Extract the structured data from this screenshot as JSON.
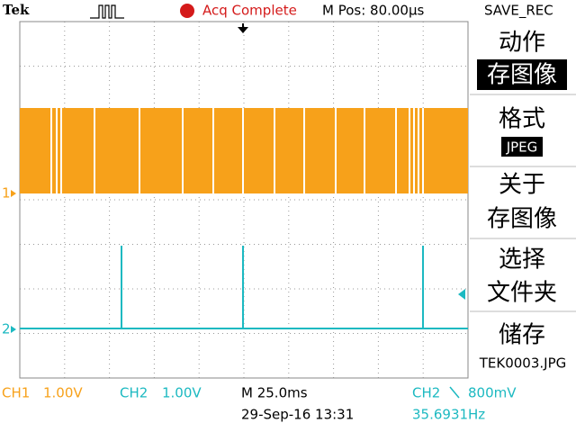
{
  "header": {
    "brand": "Tek",
    "status": "Acq Complete",
    "position": "M Pos: 80.00µs",
    "menu_title": "SAVE_REC"
  },
  "menu": {
    "action_label": "动作",
    "action_value": "存图像",
    "format_label": "格式",
    "format_value": "JPEG",
    "about": [
      "关于",
      "存图像"
    ],
    "select": [
      "选择",
      "文件夹"
    ],
    "save_label": "储存",
    "save_file": "TEK0003.JPG"
  },
  "channels": {
    "markers": [
      "1",
      "2"
    ]
  },
  "footer": {
    "ch1_label": "CH1",
    "ch1_scale": "1.00V",
    "ch2_label": "CH2",
    "ch2_scale": "1.00V",
    "timebase": "M 25.0ms",
    "datetime": "29-Sep-16 13:31",
    "trigger_source": "CH2",
    "trigger_level": "800mV",
    "frequency": "35.6931Hz"
  }
}
